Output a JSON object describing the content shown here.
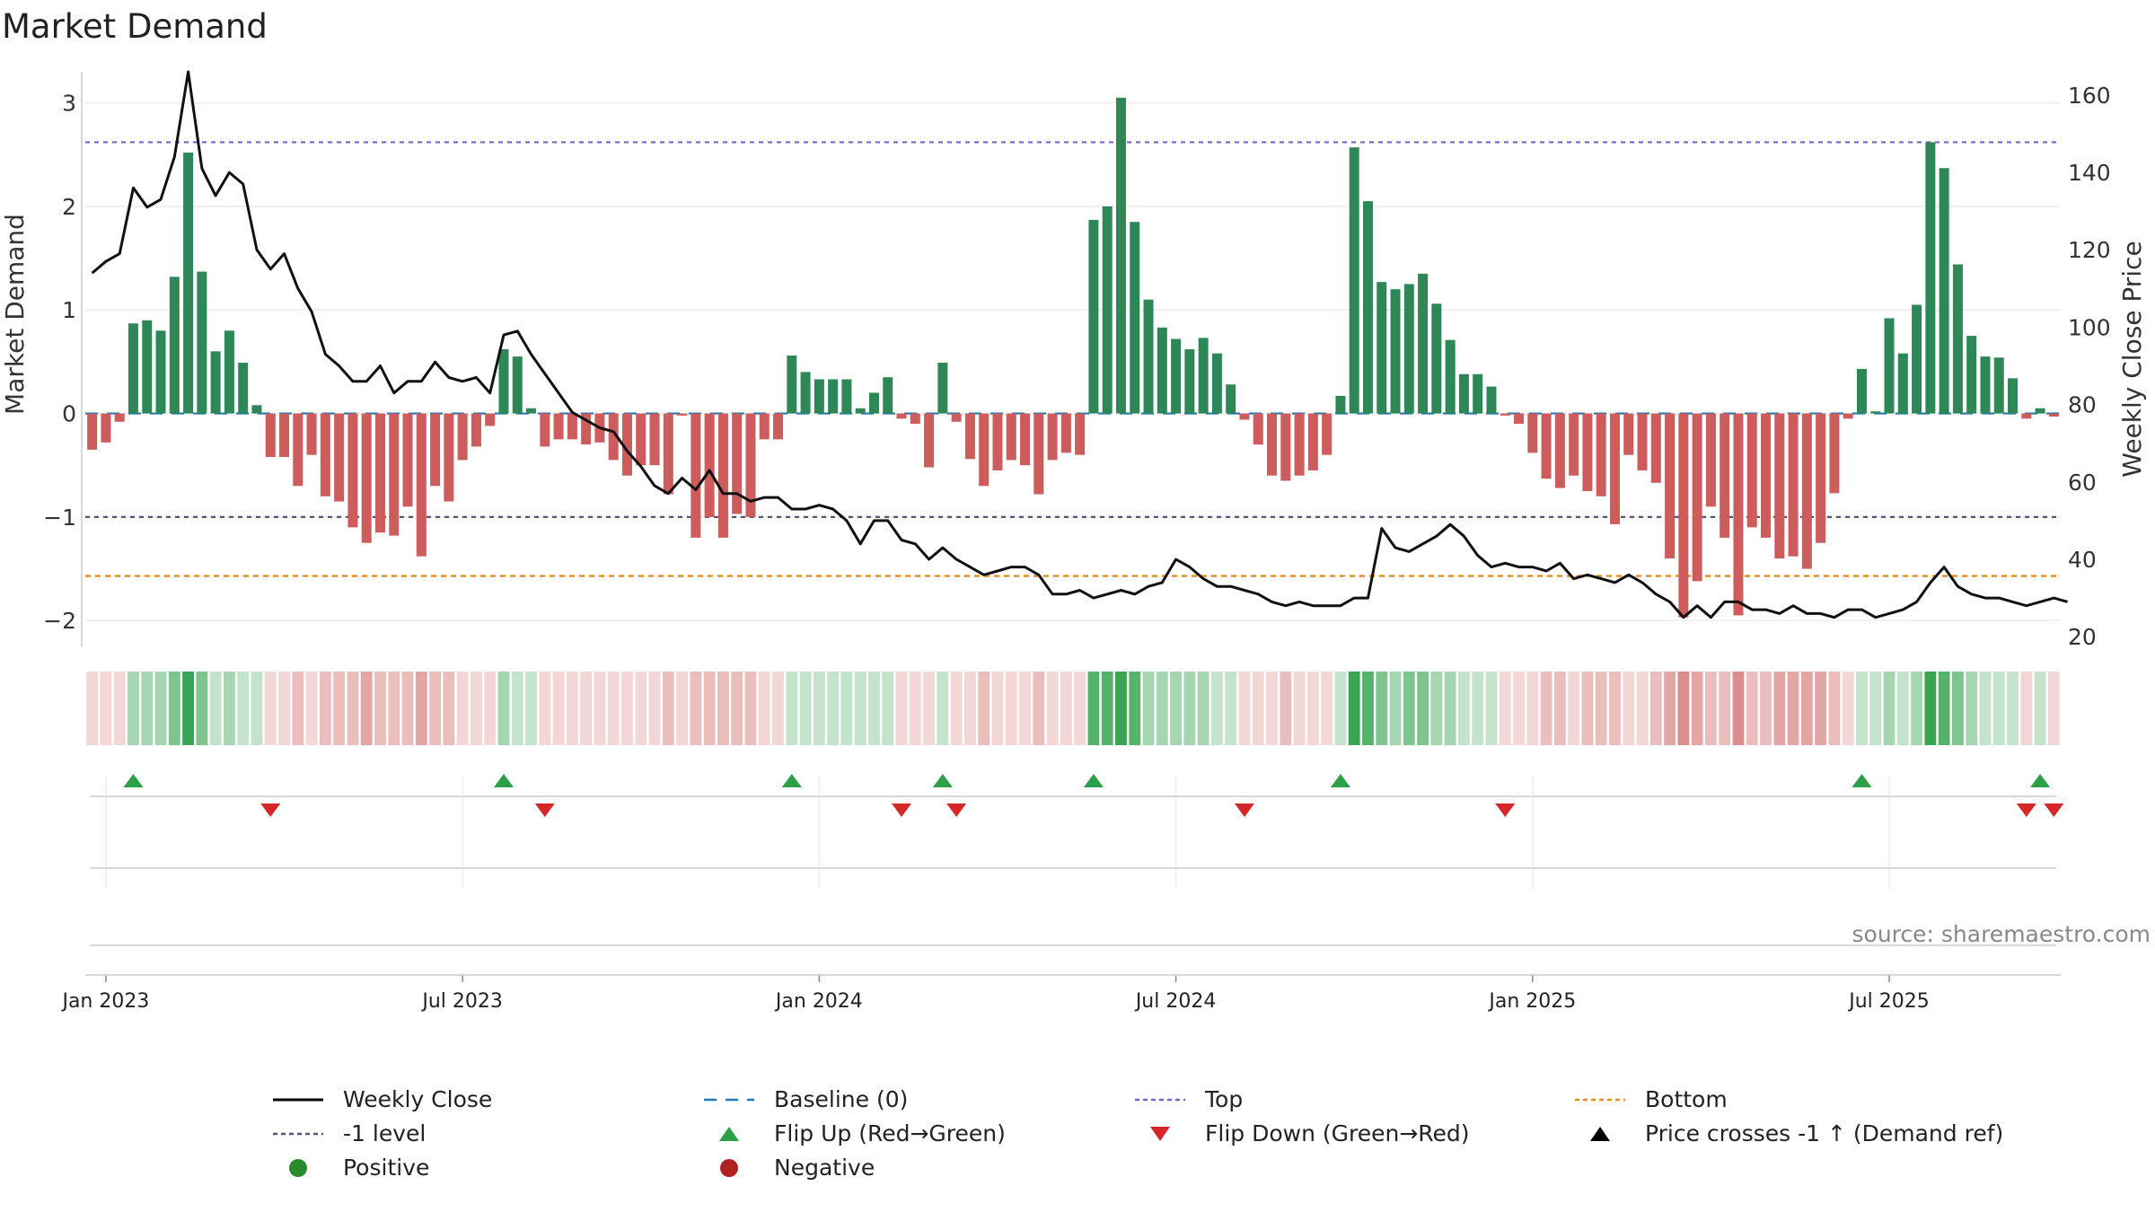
{
  "title": "Market Demand",
  "source": "source: sharemaestro.com",
  "legend": [
    {
      "key": "weekly_close",
      "label": "Weekly Close",
      "color": "#000000",
      "style": "line"
    },
    {
      "key": "baseline",
      "label": "Baseline (0)",
      "color": "#1f77b4",
      "style": "dash"
    },
    {
      "key": "top",
      "label": "Top",
      "color": "#6a6ad0",
      "style": "dot"
    },
    {
      "key": "bottom",
      "label": "Bottom",
      "color": "#e68a1a",
      "style": "dot"
    },
    {
      "key": "minus1",
      "label": "-1 level",
      "color": "#555577",
      "style": "dot"
    },
    {
      "key": "flip_up",
      "label": "Flip Up (Red→Green)",
      "color": "#2ca048",
      "style": "tri-up"
    },
    {
      "key": "flip_down",
      "label": "Flip Down (Green→Red)",
      "color": "#d62728",
      "style": "tri-down"
    },
    {
      "key": "price_cross",
      "label": "Price crosses -1 ↑ (Demand ref)",
      "color": "#000000",
      "style": "tri-up"
    },
    {
      "key": "positive",
      "label": "Positive",
      "color": "#2a8a2a",
      "style": "circle"
    },
    {
      "key": "negative",
      "label": "Negative",
      "color": "#b02020",
      "style": "circle"
    }
  ],
  "chart_data": {
    "type": "bar",
    "title": "Market Demand",
    "ylabel": "Market Demand",
    "y2label": "Weekly Close Price",
    "ylim": [
      -2.25,
      3.3
    ],
    "y2lim": [
      17.5,
      166
    ],
    "yticks": [
      "−2",
      "−1",
      "0",
      "1",
      "2",
      "3"
    ],
    "y2ticks": [
      "20",
      "40",
      "60",
      "80",
      "100",
      "120",
      "140",
      "160"
    ],
    "xticks": [
      "Jan 2023",
      "Jul 2023",
      "Jan 2024",
      "Jul 2024",
      "Jan 2025",
      "Jul 2025"
    ],
    "xtick_weeks": [
      1,
      27,
      53,
      79,
      105,
      131
    ],
    "top_level": 2.62,
    "bottom_level": -1.57,
    "minus1_level": -1.0,
    "colors": {
      "positive": "#2e8757",
      "negative": "#cd5c5c",
      "price": "#111111"
    },
    "demand": [
      -0.35,
      -0.28,
      -0.08,
      0.87,
      0.9,
      0.8,
      1.32,
      2.52,
      1.37,
      0.6,
      0.8,
      0.49,
      0.08,
      -0.42,
      -0.42,
      -0.7,
      -0.4,
      -0.8,
      -0.85,
      -1.1,
      -1.25,
      -1.15,
      -1.18,
      -0.9,
      -1.38,
      -0.7,
      -0.85,
      -0.45,
      -0.32,
      -0.12,
      0.62,
      0.55,
      0.05,
      -0.32,
      -0.25,
      -0.25,
      -0.3,
      -0.28,
      -0.45,
      -0.6,
      -0.5,
      -0.5,
      -0.78,
      -0.02,
      -1.2,
      -1.0,
      -1.2,
      -0.97,
      -1.0,
      -0.25,
      -0.25,
      0.56,
      0.4,
      0.33,
      0.33,
      0.33,
      0.05,
      0.2,
      0.35,
      -0.05,
      -0.1,
      -0.52,
      0.49,
      -0.08,
      -0.44,
      -0.7,
      -0.55,
      -0.45,
      -0.5,
      -0.78,
      -0.45,
      -0.38,
      -0.4,
      1.87,
      2.0,
      3.05,
      1.85,
      1.1,
      0.83,
      0.72,
      0.62,
      0.73,
      0.58,
      0.28,
      -0.06,
      -0.3,
      -0.6,
      -0.65,
      -0.6,
      -0.55,
      -0.4,
      0.17,
      2.57,
      2.05,
      1.27,
      1.2,
      1.25,
      1.35,
      1.06,
      0.71,
      0.38,
      0.38,
      0.26,
      -0.02,
      -0.1,
      -0.38,
      -0.63,
      -0.72,
      -0.6,
      -0.75,
      -0.8,
      -1.07,
      -0.4,
      -0.55,
      -0.67,
      -1.4,
      -1.97,
      -1.62,
      -0.9,
      -1.2,
      -1.95,
      -1.1,
      -1.2,
      -1.4,
      -1.38,
      -1.5,
      -1.25,
      -0.77,
      -0.05,
      0.43,
      0.02,
      0.92,
      0.58,
      1.05,
      2.62,
      2.37,
      1.44,
      0.75,
      0.55,
      0.54,
      0.34,
      -0.05,
      0.05,
      -0.03
    ],
    "price": [
      114,
      117,
      119,
      136,
      131,
      133,
      144,
      166,
      141,
      134,
      140,
      137,
      120,
      115,
      119,
      110,
      104,
      93,
      90,
      86,
      86,
      90,
      83,
      86,
      86,
      91,
      87,
      86,
      87,
      83,
      98,
      99,
      93,
      88,
      83,
      78,
      76,
      74,
      73,
      68,
      64,
      59,
      57,
      61,
      58,
      63,
      57,
      57,
      55,
      56,
      56,
      53,
      53,
      54,
      53,
      50,
      44,
      50,
      50,
      45,
      44,
      40,
      43,
      40,
      38,
      36,
      37,
      38,
      38,
      36,
      31,
      31,
      32,
      30,
      31,
      32,
      31,
      33,
      34,
      40,
      38,
      35,
      33,
      33,
      32,
      31,
      29,
      28,
      29,
      28,
      28,
      28,
      30,
      30,
      48,
      43,
      42,
      44,
      46,
      49,
      46,
      41,
      38,
      39,
      38,
      38,
      37,
      39,
      35,
      36,
      35,
      34,
      36,
      34,
      31,
      29,
      25,
      28,
      25,
      29,
      29,
      27,
      27,
      26,
      28,
      26,
      26,
      25,
      27,
      27,
      25,
      26,
      27,
      29,
      34,
      38,
      33,
      31,
      30,
      30,
      29,
      28,
      29,
      30,
      29
    ]
  }
}
